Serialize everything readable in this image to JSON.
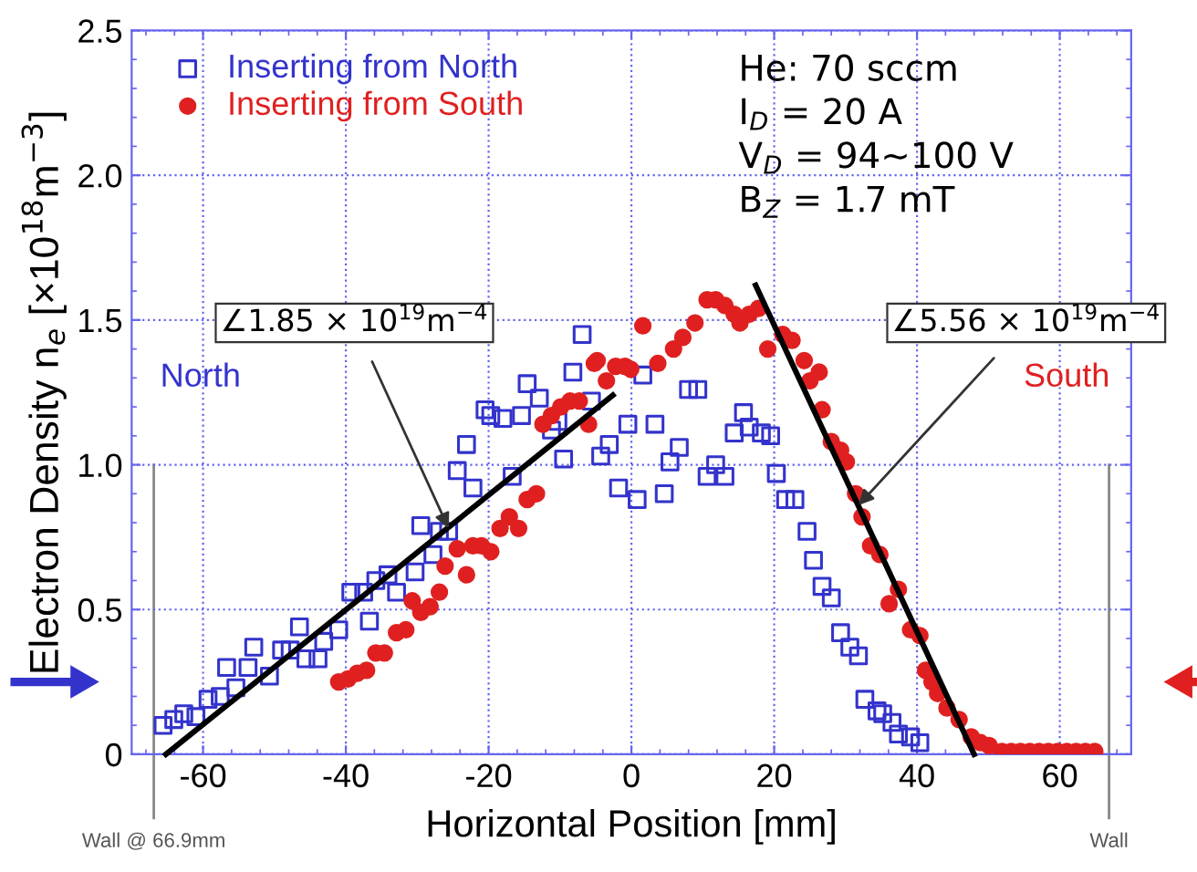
{
  "chart_data": {
    "type": "scatter",
    "xlabel": "Horizontal Position [mm]",
    "ylabel": "Electron Density n$_{e}$ [×10$^{18}$m$^{−3}$]",
    "xlim": [
      -70,
      70
    ],
    "ylim": [
      0,
      2.5
    ],
    "xticks": [
      -60,
      -40,
      -20,
      0,
      20,
      40,
      60
    ],
    "yticks": [
      0,
      {
        "value": 0.5,
        "label": "0.5"
      },
      {
        "value": 1.0,
        "label": "1.0"
      },
      {
        "value": 1.5,
        "label": "1.5"
      },
      {
        "value": 2.0,
        "label": "2.0"
      },
      {
        "value": 2.5,
        "label": "2.5"
      }
    ],
    "grid": true,
    "legend": "top left",
    "series": [
      {
        "name": "Inserting from North",
        "color": "#3333cc",
        "marker": "square",
        "x": [
          -65.6,
          -64.1,
          -62.7,
          -61.0,
          -59.3,
          -57.6,
          -56.7,
          -55.4,
          -53.7,
          -52.9,
          -50.7,
          -49.0,
          -47.8,
          -46.5,
          -45.6,
          -43.9,
          -43.1,
          -41.0,
          -39.3,
          -37.5,
          -36.7,
          -35.8,
          -34.1,
          -32.9,
          -30.3,
          -29.5,
          -27.8,
          -26.9,
          -25.6,
          -24.4,
          -23.1,
          -22.2,
          -20.5,
          -19.7,
          -18.0,
          -16.7,
          -15.4,
          -14.6,
          -12.9,
          -11.2,
          -10.3,
          -9.5,
          -8.2,
          -6.9,
          -5.6,
          -4.3,
          -3.1,
          -1.8,
          -0.5,
          0.8,
          1.6,
          3.3,
          4.6,
          5.4,
          6.7,
          8.0,
          9.3,
          10.6,
          11.8,
          13.1,
          14.4,
          15.7,
          16.5,
          18.2,
          19.5,
          20.3,
          21.6,
          22.9,
          24.6,
          25.5,
          26.7,
          28.0,
          29.3,
          30.6,
          31.8,
          32.7,
          34.4,
          35.2,
          36.5,
          37.4,
          39.1,
          40.4
        ],
        "values": [
          0.1,
          0.12,
          0.14,
          0.13,
          0.19,
          0.2,
          0.3,
          0.23,
          0.3,
          0.37,
          0.27,
          0.36,
          0.36,
          0.44,
          0.33,
          0.33,
          0.39,
          0.43,
          0.56,
          0.56,
          0.46,
          0.6,
          0.62,
          0.56,
          0.63,
          0.79,
          0.69,
          0.77,
          0.77,
          0.98,
          1.07,
          0.92,
          1.19,
          1.17,
          1.16,
          0.96,
          1.17,
          1.28,
          1.23,
          1.12,
          1.15,
          1.02,
          1.32,
          1.45,
          1.22,
          1.03,
          1.07,
          0.92,
          1.14,
          0.88,
          1.31,
          1.14,
          0.9,
          1.01,
          1.06,
          1.26,
          1.26,
          0.96,
          1.0,
          0.96,
          1.11,
          1.18,
          1.13,
          1.11,
          1.1,
          0.97,
          0.88,
          0.88,
          0.77,
          0.67,
          0.58,
          0.54,
          0.42,
          0.37,
          0.34,
          0.19,
          0.15,
          0.14,
          0.11,
          0.07,
          0.06,
          0.04
        ]
      },
      {
        "name": "Inserting from South",
        "color": "#e02020",
        "marker": "circle",
        "x": [
          -41.0,
          -39.7,
          -38.4,
          -37.1,
          -35.8,
          -34.6,
          -32.9,
          -31.6,
          -30.7,
          -29.5,
          -28.2,
          -26.9,
          -26.1,
          -24.4,
          -23.1,
          -22.2,
          -21.0,
          -19.7,
          -18.4,
          -17.1,
          -15.8,
          -14.6,
          -13.3,
          -12.4,
          -11.2,
          -9.9,
          -8.6,
          -7.3,
          -6.0,
          -5.2,
          -4.8,
          -3.5,
          -2.2,
          -0.9,
          -0.1,
          1.6,
          3.7,
          5.9,
          7.2,
          8.9,
          10.6,
          11.8,
          13.1,
          14.4,
          15.2,
          16.5,
          17.8,
          19.1,
          21.2,
          22.5,
          24.2,
          25.0,
          26.3,
          26.7,
          28.0,
          29.3,
          30.1,
          31.4,
          32.3,
          33.5,
          34.8,
          36.1,
          37.4,
          39.1,
          40.4,
          41.2,
          42.1,
          42.9,
          44.2,
          45.9,
          47.6,
          48.9,
          50.1,
          51.9,
          53.2,
          54.5,
          55.8,
          57.1,
          58.4,
          59.7,
          61.0,
          62.3,
          63.6,
          64.9
        ],
        "values": [
          0.25,
          0.26,
          0.28,
          0.29,
          0.35,
          0.35,
          0.42,
          0.43,
          0.53,
          0.49,
          0.51,
          0.56,
          0.65,
          0.71,
          0.62,
          0.72,
          0.72,
          0.7,
          0.78,
          0.82,
          0.78,
          0.88,
          0.9,
          1.14,
          1.17,
          1.2,
          1.22,
          1.22,
          1.14,
          1.35,
          1.36,
          1.29,
          1.34,
          1.34,
          1.33,
          1.48,
          1.35,
          1.4,
          1.44,
          1.49,
          1.57,
          1.57,
          1.55,
          1.52,
          1.49,
          1.52,
          1.54,
          1.4,
          1.45,
          1.43,
          1.36,
          1.29,
          1.32,
          1.19,
          1.08,
          1.05,
          1.01,
          0.9,
          0.82,
          0.72,
          0.69,
          0.52,
          0.57,
          0.43,
          0.41,
          0.29,
          0.25,
          0.21,
          0.16,
          0.12,
          0.06,
          0.04,
          0.03,
          0.01,
          0.01,
          0.01,
          0.01,
          0.01,
          0.01,
          0.01,
          0.01,
          0.01,
          0.01,
          0.01
        ]
      },
      {
        "type": "line",
        "color": "#000000",
        "marker": "none",
        "x": [
          -65.2,
          -2.6
        ],
        "values": [
          0,
          1.24
        ]
      },
      {
        "type": "line",
        "color": "#000000",
        "marker": "none",
        "x": [
          17.4,
          48.0
        ],
        "values": [
          1.62,
          0
        ]
      }
    ],
    "ref_lines": [
      {
        "axis": "x",
        "value": -66.9,
        "label": "Wall @ 66.9mm",
        "color": "#888888"
      },
      {
        "axis": "x",
        "value": 66.9,
        "label": "Wall",
        "color": "#888888"
      }
    ],
    "annotations": [
      {
        "text": "∠1.85 × 10$^{19}$m$^{−4}$",
        "x": -25.6,
        "y": 0.78
      },
      {
        "text": "∠5.56 × 10$^{19}$m$^{−4}$",
        "x": 31.8,
        "y": 0.86
      },
      "North",
      "South",
      "He: 70 sccm\nI$_{D}$ = 20 A\nV$_{D}$ = 94∼100 V\nB$_{Z}$ = 1.7 mT"
    ]
  }
}
